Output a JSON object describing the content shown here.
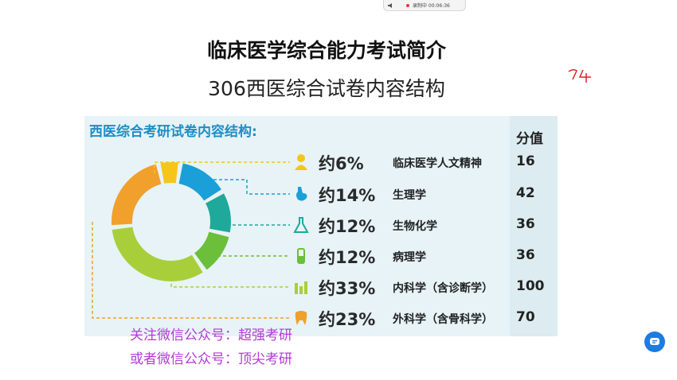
{
  "recording": {
    "label": "录制中 00:06:36"
  },
  "header": {
    "title": "临床医学综合能力考试简介",
    "subtitle": "306西医综合试卷内容结构"
  },
  "scribble_text": "74",
  "panel": {
    "title": "西医综合考研试卷内容结构:",
    "score_header": "分值"
  },
  "chart_data": {
    "type": "pie",
    "title": "西医综合考研试卷内容结构:",
    "categories": [
      "临床医学人文精神",
      "生理学",
      "生物化学",
      "病理学",
      "内科学（含诊断学）",
      "外科学（含骨科学）"
    ],
    "labels": [
      "约6%",
      "约14%",
      "约12%",
      "约12%",
      "约33%",
      "约23%"
    ],
    "values": [
      6,
      14,
      12,
      12,
      33,
      23
    ],
    "scores": [
      "16",
      "42",
      "36",
      "36",
      "100",
      "70"
    ],
    "colors": [
      "#f5c518",
      "#1a9fd8",
      "#1fa99b",
      "#6bbf3a",
      "#a8cf3a",
      "#f0a02b"
    ],
    "icons": [
      "person-icon",
      "stomach-icon",
      "flask-icon",
      "test-tube-icon",
      "lab-icon",
      "tooth-icon"
    ]
  },
  "watermark": {
    "line1": "关注微信公众号：超强考研",
    "line2": "或者微信公众号：顶尖考研"
  }
}
